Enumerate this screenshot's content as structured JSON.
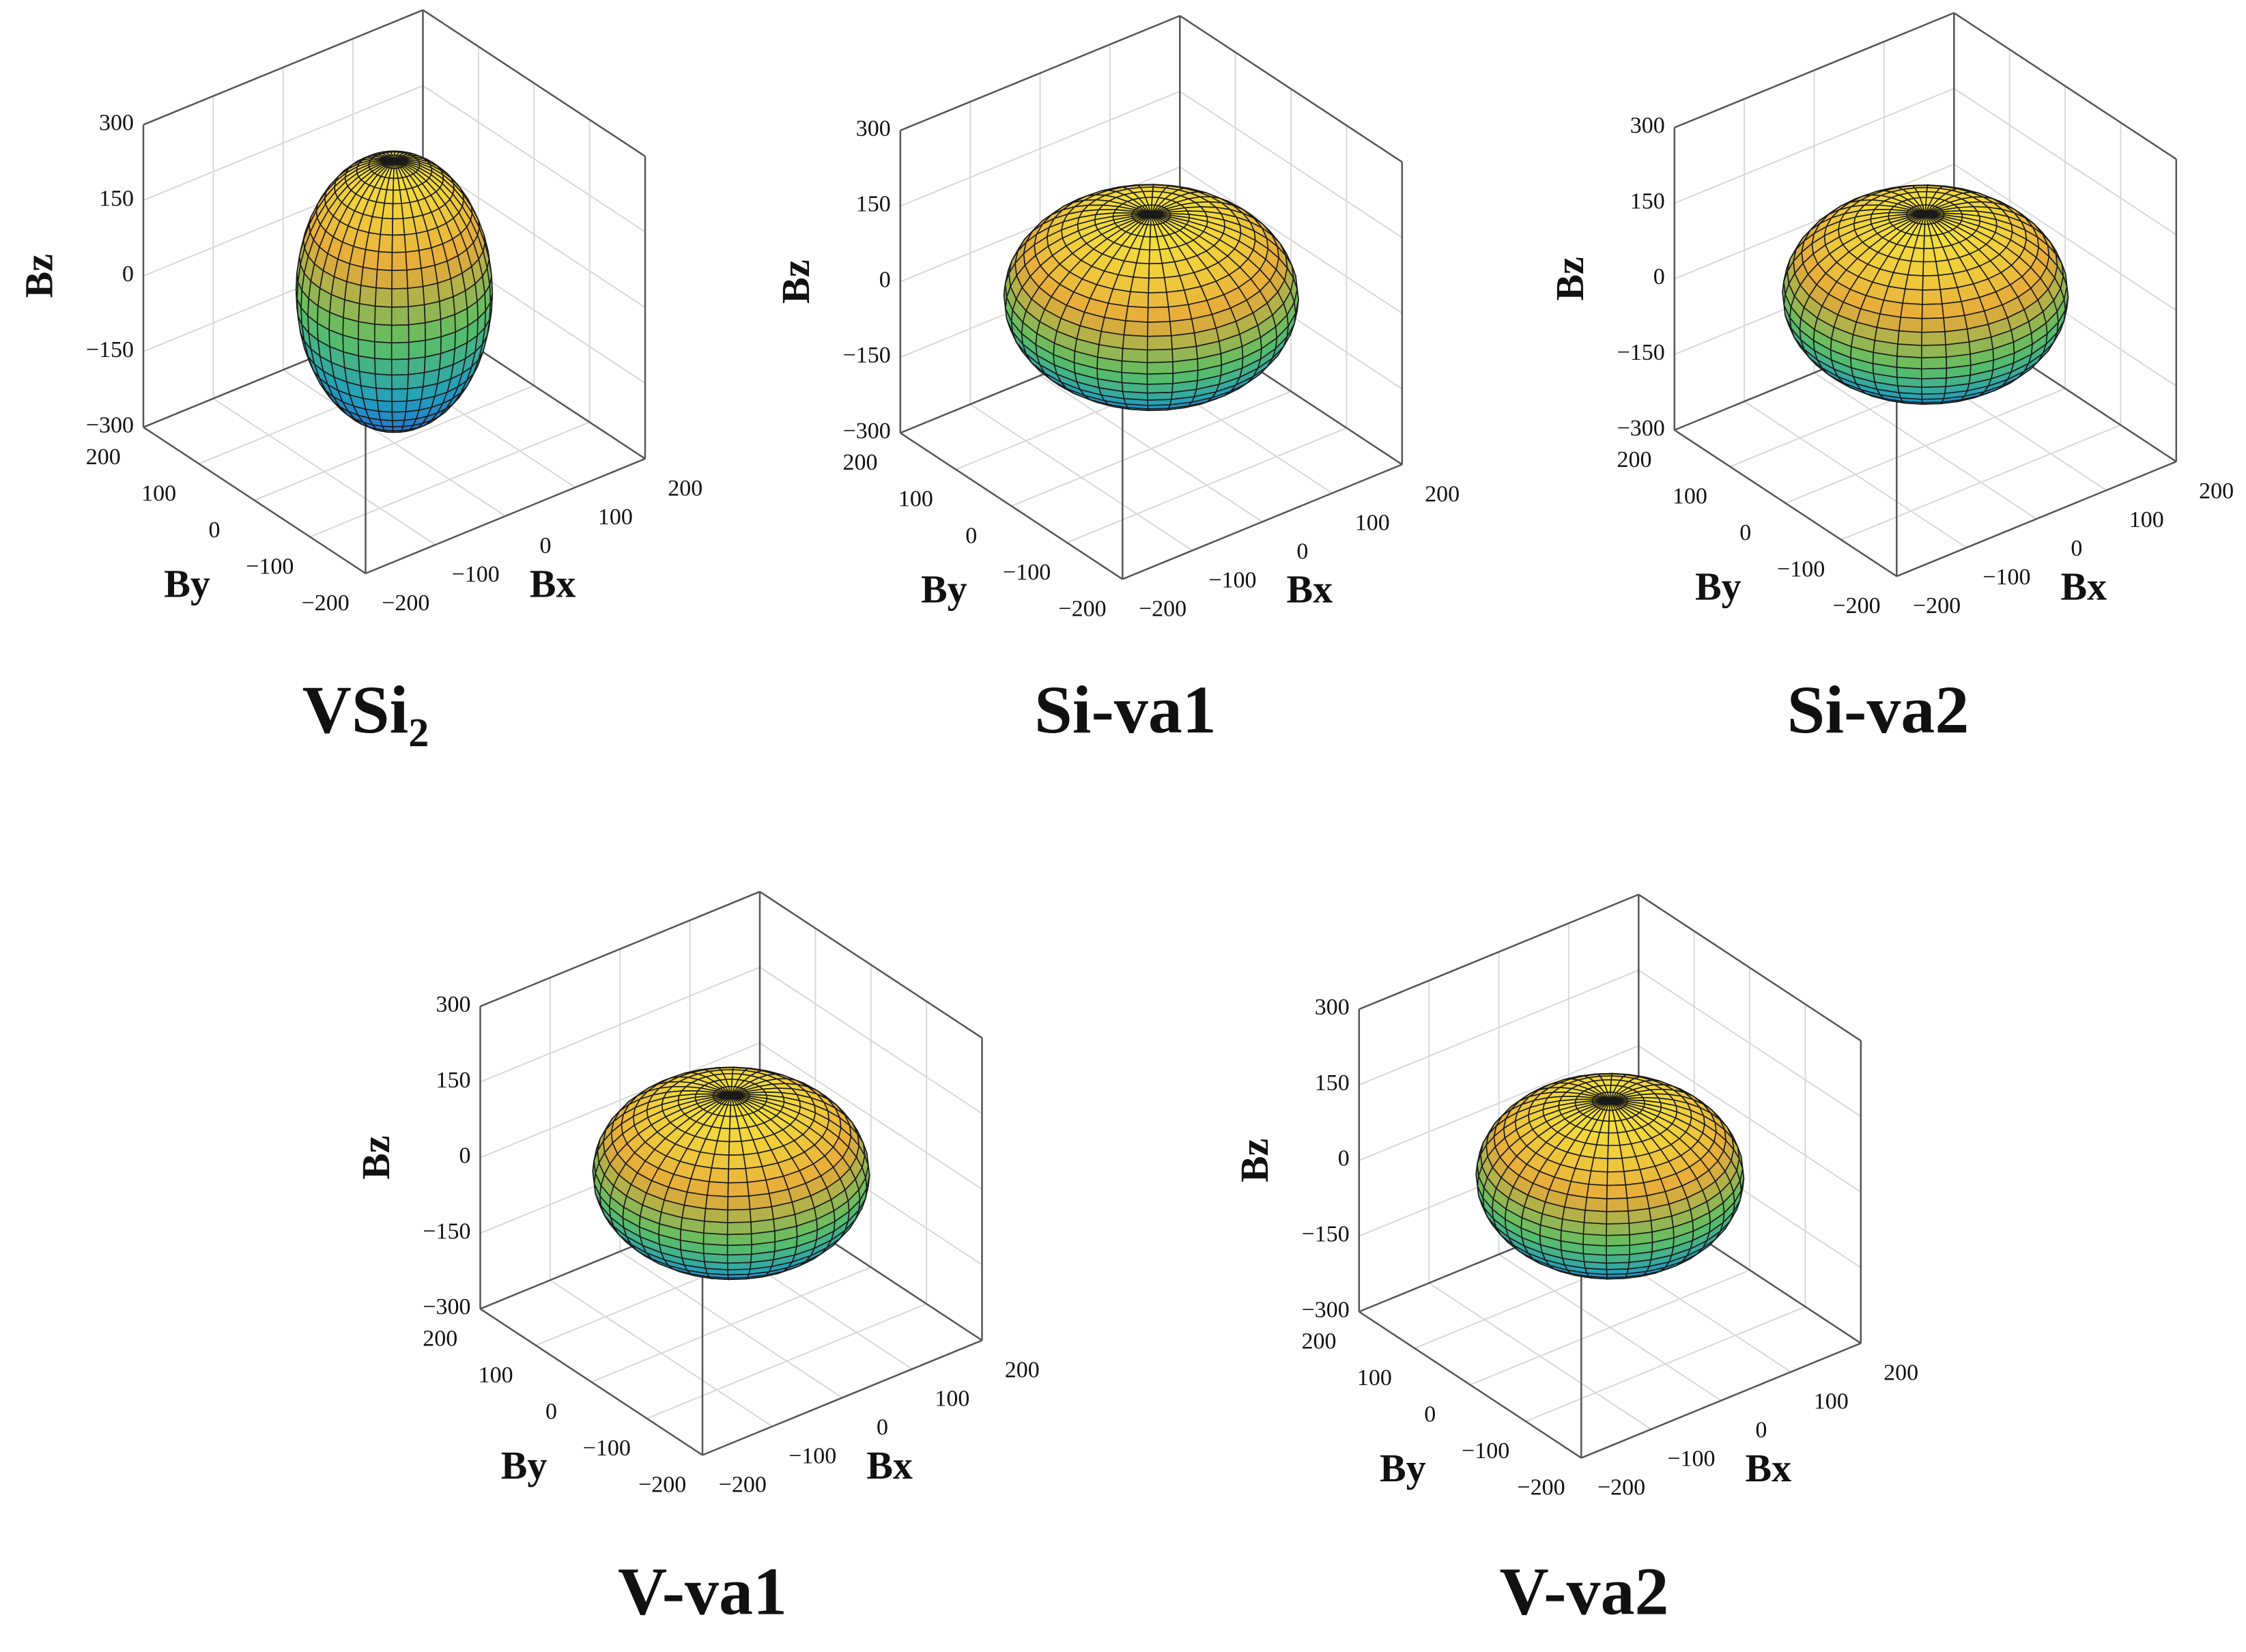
{
  "chart_data": [
    {
      "type": "surface",
      "title": "VSi₂",
      "xlabel": "Bx",
      "ylabel": "By",
      "zlabel": "Bz",
      "radii": [
        110,
        110,
        260
      ],
      "xlim": [
        -200,
        200
      ],
      "ylim": [
        -200,
        200
      ],
      "zlim": [
        -300,
        300
      ],
      "xticks": [
        {
          "value": -200,
          "label": "−200"
        },
        {
          "value": -100,
          "label": "−100"
        },
        0,
        100,
        200
      ],
      "yticks": [
        {
          "value": -200,
          "label": "−200"
        },
        {
          "value": -100,
          "label": "−100"
        },
        0,
        100,
        200
      ],
      "zticks": [
        {
          "value": -300,
          "label": "−300"
        },
        {
          "value": -150,
          "label": "−150"
        },
        0,
        150,
        300
      ],
      "grid": true,
      "colormap": [
        "#2a62d4",
        "#1f9fbf",
        "#5cbf63",
        "#e6a93a",
        "#f5e23c"
      ]
    },
    {
      "type": "surface",
      "title": "Si-va1",
      "xlabel": "Bx",
      "ylabel": "By",
      "zlabel": "Bz",
      "radii": [
        165,
        165,
        165
      ],
      "xlim": [
        -200,
        200
      ],
      "ylim": [
        -200,
        200
      ],
      "zlim": [
        -300,
        300
      ],
      "xticks": [
        {
          "value": -200,
          "label": "−200"
        },
        {
          "value": -100,
          "label": "−100"
        },
        0,
        100,
        200
      ],
      "yticks": [
        {
          "value": -200,
          "label": "−200"
        },
        {
          "value": -100,
          "label": "−100"
        },
        0,
        100,
        200
      ],
      "zticks": [
        {
          "value": -300,
          "label": "−300"
        },
        {
          "value": -150,
          "label": "−150"
        },
        0,
        150,
        300
      ],
      "grid": true,
      "colormap": [
        "#2a62d4",
        "#1f9fbf",
        "#5cbf63",
        "#e6a93a",
        "#f5e23c"
      ]
    },
    {
      "type": "surface",
      "title": "Si-va2",
      "xlabel": "Bx",
      "ylabel": "By",
      "zlabel": "Bz",
      "radii": [
        160,
        160,
        160
      ],
      "xlim": [
        -200,
        200
      ],
      "ylim": [
        -200,
        200
      ],
      "zlim": [
        -300,
        300
      ],
      "xticks": [
        {
          "value": -200,
          "label": "−200"
        },
        {
          "value": -100,
          "label": "−100"
        },
        0,
        100,
        200
      ],
      "yticks": [
        {
          "value": -200,
          "label": "−200"
        },
        {
          "value": -100,
          "label": "−100"
        },
        0,
        100,
        200
      ],
      "zticks": [
        {
          "value": -300,
          "label": "−300"
        },
        {
          "value": -150,
          "label": "−150"
        },
        0,
        150,
        300
      ],
      "grid": true,
      "colormap": [
        "#2a62d4",
        "#1f9fbf",
        "#5cbf63",
        "#e6a93a",
        "#f5e23c"
      ]
    },
    {
      "type": "surface",
      "title": "V-va1",
      "xlabel": "Bx",
      "ylabel": "By",
      "zlabel": "Bz",
      "radii": [
        155,
        155,
        155
      ],
      "xlim": [
        -200,
        200
      ],
      "ylim": [
        -200,
        200
      ],
      "zlim": [
        -300,
        300
      ],
      "xticks": [
        {
          "value": -200,
          "label": "−200"
        },
        {
          "value": -100,
          "label": "−100"
        },
        0,
        100,
        200
      ],
      "yticks": [
        {
          "value": -200,
          "label": "−200"
        },
        {
          "value": -100,
          "label": "−100"
        },
        0,
        100,
        200
      ],
      "zticks": [
        {
          "value": -300,
          "label": "−300"
        },
        {
          "value": -150,
          "label": "−150"
        },
        0,
        150,
        300
      ],
      "grid": true,
      "colormap": [
        "#2a62d4",
        "#1f9fbf",
        "#5cbf63",
        "#e6a93a",
        "#f5e23c"
      ]
    },
    {
      "type": "surface",
      "title": "V-va2",
      "xlabel": "Bx",
      "ylabel": "By",
      "zlabel": "Bz",
      "radii": [
        150,
        150,
        150
      ],
      "xlim": [
        -200,
        200
      ],
      "ylim": [
        -200,
        200
      ],
      "zlim": [
        -300,
        300
      ],
      "xticks": [
        {
          "value": -200,
          "label": "−200"
        },
        {
          "value": -100,
          "label": "−100"
        },
        0,
        100,
        200
      ],
      "yticks": [
        {
          "value": -200,
          "label": "−200"
        },
        {
          "value": -100,
          "label": "−100"
        },
        0,
        100,
        200
      ],
      "zticks": [
        {
          "value": -300,
          "label": "−300"
        },
        {
          "value": -150,
          "label": "−150"
        },
        0,
        150,
        300
      ],
      "grid": true,
      "colormap": [
        "#2a62d4",
        "#1f9fbf",
        "#5cbf63",
        "#e6a93a",
        "#f5e23c"
      ]
    }
  ]
}
